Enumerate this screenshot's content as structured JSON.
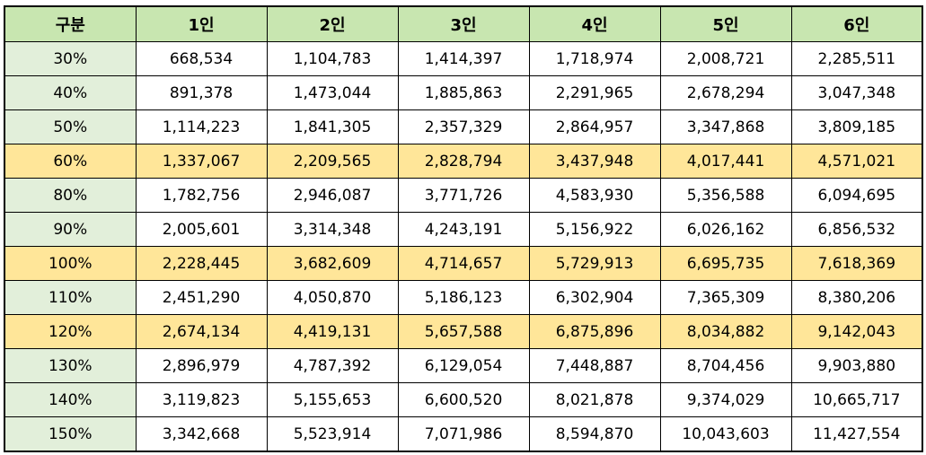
{
  "colors": {
    "header_bg": "#c8e6b0",
    "label_bg": "#e2efda",
    "highlight_bg": "#ffe699",
    "cell_bg": "#ffffff",
    "border": "#000000"
  },
  "table": {
    "headers": [
      "구분",
      "1인",
      "2인",
      "3인",
      "4인",
      "5인",
      "6인"
    ],
    "rows": [
      {
        "label": "30%",
        "highlight": false,
        "values": [
          "668,534",
          "1,104,783",
          "1,414,397",
          "1,718,974",
          "2,008,721",
          "2,285,511"
        ]
      },
      {
        "label": "40%",
        "highlight": false,
        "values": [
          "891,378",
          "1,473,044",
          "1,885,863",
          "2,291,965",
          "2,678,294",
          "3,047,348"
        ]
      },
      {
        "label": "50%",
        "highlight": false,
        "values": [
          "1,114,223",
          "1,841,305",
          "2,357,329",
          "2,864,957",
          "3,347,868",
          "3,809,185"
        ]
      },
      {
        "label": "60%",
        "highlight": true,
        "values": [
          "1,337,067",
          "2,209,565",
          "2,828,794",
          "3,437,948",
          "4,017,441",
          "4,571,021"
        ]
      },
      {
        "label": "80%",
        "highlight": false,
        "values": [
          "1,782,756",
          "2,946,087",
          "3,771,726",
          "4,583,930",
          "5,356,588",
          "6,094,695"
        ]
      },
      {
        "label": "90%",
        "highlight": false,
        "values": [
          "2,005,601",
          "3,314,348",
          "4,243,191",
          "5,156,922",
          "6,026,162",
          "6,856,532"
        ]
      },
      {
        "label": "100%",
        "highlight": true,
        "values": [
          "2,228,445",
          "3,682,609",
          "4,714,657",
          "5,729,913",
          "6,695,735",
          "7,618,369"
        ]
      },
      {
        "label": "110%",
        "highlight": false,
        "values": [
          "2,451,290",
          "4,050,870",
          "5,186,123",
          "6,302,904",
          "7,365,309",
          "8,380,206"
        ]
      },
      {
        "label": "120%",
        "highlight": true,
        "values": [
          "2,674,134",
          "4,419,131",
          "5,657,588",
          "6,875,896",
          "8,034,882",
          "9,142,043"
        ]
      },
      {
        "label": "130%",
        "highlight": false,
        "values": [
          "2,896,979",
          "4,787,392",
          "6,129,054",
          "7,448,887",
          "8,704,456",
          "9,903,880"
        ]
      },
      {
        "label": "140%",
        "highlight": false,
        "values": [
          "3,119,823",
          "5,155,653",
          "6,600,520",
          "8,021,878",
          "9,374,029",
          "10,665,717"
        ]
      },
      {
        "label": "150%",
        "highlight": false,
        "values": [
          "3,342,668",
          "5,523,914",
          "7,071,986",
          "8,594,870",
          "10,043,603",
          "11,427,554"
        ]
      }
    ]
  }
}
